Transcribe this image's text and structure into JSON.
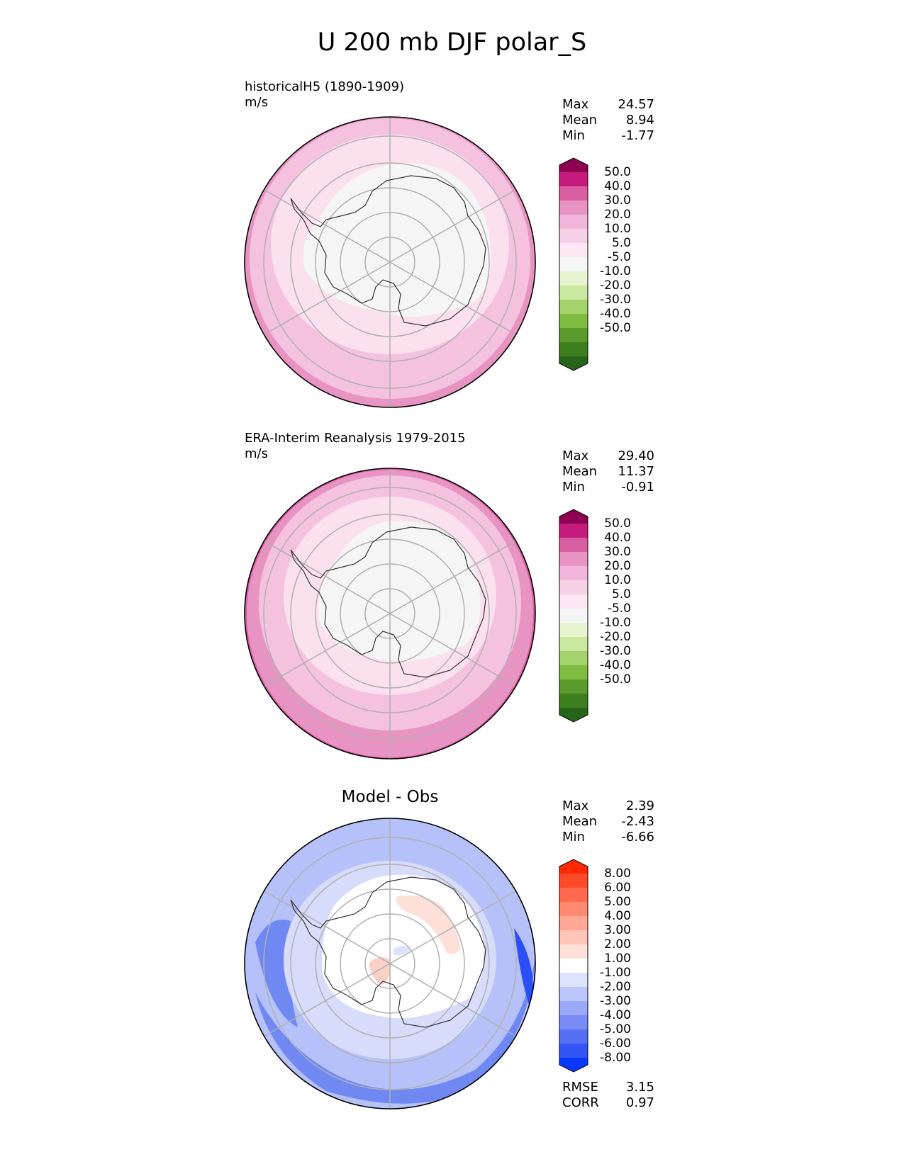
{
  "title": "U 200 mb DJF polar_S",
  "panels": [
    {
      "label": "historicalH5 (1890-1909)",
      "units": "m/s",
      "stats": {
        "max_label": "Max",
        "max": "24.57",
        "mean_label": "Mean",
        "mean": "8.94",
        "min_label": "Min",
        "min": "-1.77"
      },
      "field": {
        "type": "filled-contour-polar",
        "bands": [
          "#f5f5f5",
          "#fbe0ee",
          "#f4c2de",
          "#e894c3"
        ]
      }
    },
    {
      "label": "ERA-Interim Reanalysis 1979-2015",
      "units": "m/s",
      "stats": {
        "max_label": "Max",
        "max": "29.40",
        "mean_label": "Mean",
        "mean": "11.37",
        "min_label": "Min",
        "min": "-0.91"
      },
      "field": {
        "type": "filled-contour-polar",
        "bands": [
          "#f5f5f5",
          "#fbe0ee",
          "#f4c2de",
          "#e894c3",
          "#d95fa3"
        ]
      }
    },
    {
      "label": "Model - Obs",
      "stats": {
        "max_label": "Max",
        "max": "2.39",
        "mean_label": "Mean",
        "mean": "-2.43",
        "min_label": "Min",
        "min": "-6.66"
      },
      "metrics": {
        "rmse_label": "RMSE",
        "rmse": "3.15",
        "corr_label": "CORR",
        "corr": "0.97"
      },
      "field": {
        "type": "filled-contour-polar-diff",
        "bands": [
          "#ffffff",
          "#d7dcfb",
          "#b6c1f9",
          "#93a4f7",
          "#7088f2",
          "#4e6cf0",
          "#2a50f5"
        ]
      }
    }
  ],
  "colorbars": {
    "pink_green": {
      "labels": [
        "50.0",
        "40.0",
        "30.0",
        "20.0",
        "10.0",
        "5.0",
        "-5.0",
        "-10.0",
        "-20.0",
        "-30.0",
        "-40.0",
        "-50.0"
      ],
      "colors": [
        "#8e0152",
        "#c51b7d",
        "#d95fa3",
        "#e894c3",
        "#f1b6da",
        "#f7d2e6",
        "#fbe8f2",
        "#f5f5f5",
        "#e6f5d0",
        "#c9e8a0",
        "#a4d26c",
        "#7fbc41",
        "#5a9b2b",
        "#3d7f1f",
        "#276419"
      ]
    },
    "red_blue": {
      "labels": [
        "8.00",
        "6.00",
        "5.00",
        "4.00",
        "3.00",
        "2.00",
        "1.00",
        "-1.00",
        "-2.00",
        "-3.00",
        "-4.00",
        "-5.00",
        "-6.00",
        "-8.00"
      ],
      "colors": [
        "#ff2a05",
        "#ff4a2a",
        "#ff6a4e",
        "#ff8a72",
        "#ffa896",
        "#ffc4b8",
        "#fde0da",
        "#ffffff",
        "#dde2fd",
        "#bcc6fb",
        "#9aa9f8",
        "#788cf6",
        "#5670f4",
        "#3355f5",
        "#0a37fc"
      ]
    }
  }
}
